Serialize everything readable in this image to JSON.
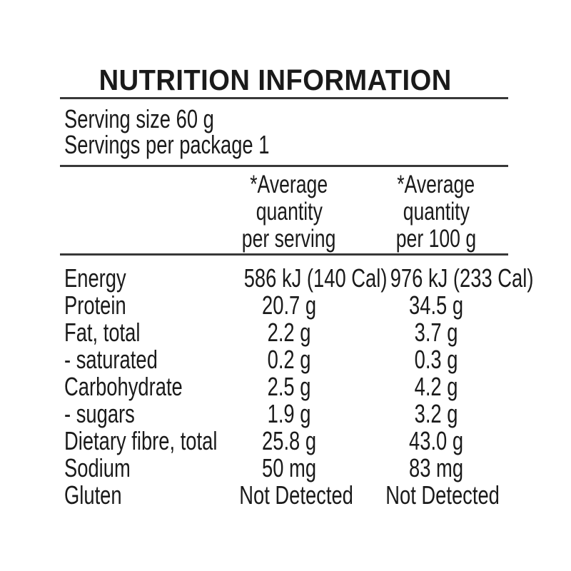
{
  "label": {
    "title": "NUTRITION INFORMATION",
    "serving_size": "Serving size 60 g",
    "servings_per_package": "Servings per package 1",
    "col_per_serving": [
      "*Average",
      "quantity",
      "per serving"
    ],
    "col_per_100g": [
      "*Average",
      "quantity",
      "per 100 g"
    ],
    "rows": [
      {
        "label": "Energy",
        "per_serving": "586 kJ (140 Cal)",
        "per_100g": "976 kJ (233 Cal)"
      },
      {
        "label": "Protein",
        "per_serving": "20.7 g",
        "per_100g": "34.5 g"
      },
      {
        "label": "Fat, total",
        "per_serving": "2.2 g",
        "per_100g": "3.7 g"
      },
      {
        "label": "- saturated",
        "per_serving": "0.2 g",
        "per_100g": "0.3 g"
      },
      {
        "label": "Carbohydrate",
        "per_serving": "2.5 g",
        "per_100g": "4.2 g"
      },
      {
        "label": "- sugars",
        "per_serving": "1.9 g",
        "per_100g": "3.2 g"
      },
      {
        "label": "Dietary fibre, total",
        "per_serving": "25.8 g",
        "per_100g": "43.0 g"
      },
      {
        "label": "Sodium",
        "per_serving": "50 mg",
        "per_100g": "83 mg"
      },
      {
        "label": "Gluten",
        "per_serving": "Not Detected",
        "per_100g": "Not Detected"
      }
    ]
  },
  "colors": {
    "text": "#1a1a1a",
    "rule": "#383838",
    "background": "#ffffff"
  }
}
